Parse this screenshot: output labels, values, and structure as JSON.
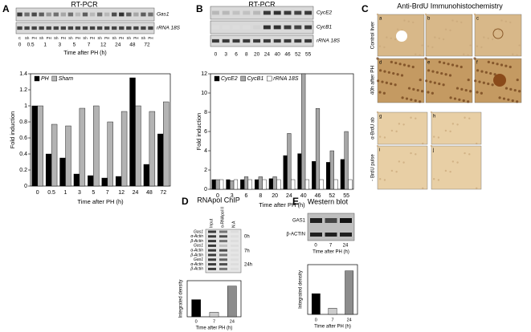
{
  "chart_data": [
    {
      "type": "bar",
      "categories": [
        "0",
        "0.5",
        "1",
        "3",
        "5",
        "7",
        "12",
        "24",
        "48",
        "72"
      ],
      "series": [
        {
          "name": "PH",
          "color": "#000000",
          "values": [
            1.0,
            0.4,
            0.35,
            0.15,
            0.13,
            0.1,
            0.12,
            1.35,
            0.27,
            0.65
          ]
        },
        {
          "name": "Sham",
          "color": "#b3b3b3",
          "values": [
            1.0,
            0.77,
            0.75,
            0.97,
            1.0,
            0.8,
            0.93,
            1.0,
            0.93,
            1.05
          ]
        }
      ],
      "ylim": [
        0,
        1.4
      ],
      "yticks": [
        0,
        0.2,
        0.4,
        0.6,
        0.8,
        1,
        1.2,
        1.4
      ],
      "ylabel": "Fold induction",
      "xlabel": "Time after PH (h)",
      "legend": "upper left"
    },
    {
      "type": "bar",
      "categories": [
        "0",
        "3",
        "6",
        "8",
        "20",
        "24",
        "40",
        "46",
        "52",
        "55"
      ],
      "series": [
        {
          "name": "CycE2",
          "color": "#000000",
          "values": [
            1,
            1,
            1,
            1,
            1.1,
            3.5,
            3.7,
            2.9,
            2.8,
            3.1
          ]
        },
        {
          "name": "CycB1",
          "color": "#a6a6a6",
          "values": [
            1,
            0.9,
            1.3,
            1.3,
            1.3,
            5.8,
            12,
            8.4,
            4,
            6
          ]
        },
        {
          "name": "rRNA 18S",
          "color": "#ffffff",
          "values": [
            1,
            1,
            1,
            1,
            1,
            1,
            1,
            1,
            1,
            1
          ]
        }
      ],
      "ylim": [
        0,
        12
      ],
      "yticks": [
        0,
        2,
        4,
        6,
        8,
        10,
        12
      ],
      "ylabel": "Fold induction",
      "xlabel": "Time after PH (h)",
      "legend": "upper left"
    },
    {
      "type": "bar",
      "categories": [
        "0",
        "7",
        "24"
      ],
      "values": [
        0.95,
        0.25,
        1.7
      ],
      "colors": [
        "#000000",
        "#cccccc",
        "#8c8c8c"
      ],
      "ylim": [
        0,
        2
      ],
      "ylabel": "Integrated density",
      "xlabel": "Time after PH (h)"
    },
    {
      "type": "bar",
      "categories": [
        "0",
        "7",
        "24"
      ],
      "values": [
        1.0,
        0.3,
        2.1
      ],
      "colors": [
        "#000000",
        "#cccccc",
        "#8c8c8c"
      ],
      "ylim": [
        0,
        2.4
      ],
      "ylabel": "Integrated density",
      "xlabel": "Time after PH (h)"
    }
  ],
  "panels": {
    "A": {
      "letter": "A",
      "title": "RT-PCR",
      "gel_labels": [
        "Gas1",
        "rRNA 18S"
      ],
      "lane_labels": [
        "C",
        "Sh",
        "PH",
        "Sh",
        "PH",
        "Sh",
        "PH",
        "Sh",
        "PH",
        "Sh",
        "PH",
        "Sh",
        "PH",
        "Sh",
        "PH",
        "Sh",
        "PH",
        "Sh",
        "PH"
      ],
      "times": [
        "0",
        "0.5",
        "1",
        "3",
        "5",
        "7",
        "12",
        "24",
        "48",
        "72"
      ],
      "time_axis": "Time after PH (h)"
    },
    "B": {
      "letter": "B",
      "title": "RT-PCR",
      "gel_labels": [
        "CycE2",
        "CycB1",
        "rRNA 18S"
      ],
      "times": [
        "0",
        "3",
        "6",
        "8",
        "20",
        "24",
        "40",
        "46",
        "52",
        "55"
      ],
      "time_axis": "Time after PH (h)"
    },
    "C": {
      "letter": "C",
      "title": "Anti-BrdU Immunohistochemistry",
      "row_labels": [
        "Control liver",
        "40h after PH"
      ],
      "sub_labels": [
        "a",
        "b",
        "c",
        "d",
        "e",
        "f",
        "g",
        "h",
        "i",
        "j"
      ],
      "side_labels": [
        "α-BrdU ab",
        "- BrdU pulse"
      ]
    },
    "D": {
      "letter": "D",
      "title": "RNApol ChIP",
      "columns": [
        "Input",
        "α-RNApol II",
        "N.A"
      ],
      "rows": [
        "Gas1",
        "α-Actin",
        "β-Actin",
        "Gas1",
        "α-Actin",
        "β-Actin",
        "Gas1",
        "α-Actin",
        "β-Actin"
      ],
      "times": [
        "0h",
        "7h",
        "24h"
      ]
    },
    "E": {
      "letter": "E",
      "title": "Western blot",
      "rows": [
        "GAS1",
        "β-ACTIN"
      ],
      "times": [
        "0",
        "7",
        "24"
      ],
      "time_axis": "Time after PH (h)"
    }
  }
}
